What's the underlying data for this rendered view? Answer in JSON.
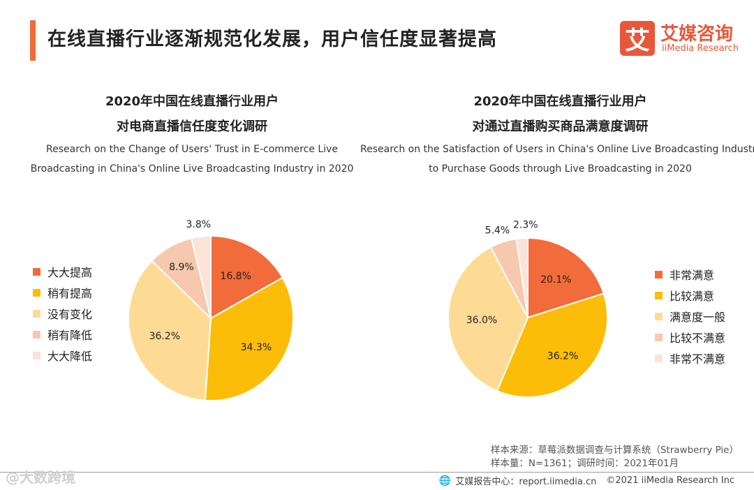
{
  "header": {
    "title": "在线直播行业逐渐规范化发展，用户信任度显著提高",
    "logo_mark": "艾",
    "logo_cn": "艾媒咨询",
    "logo_en": "iiMedia Research"
  },
  "charts": [
    {
      "title_line1": "2020年中国在线直播行业用户",
      "title_line2": "对电商直播信任度变化调研",
      "subtitle_line1": "Research on the Change of Users' Trust in E-commerce Live",
      "subtitle_line2": "Broadcasting in China's Online Live Broadcasting Industry in 2020"
    },
    {
      "title_line1": "2020年中国在线直播行业用户",
      "title_line2": "对通过直播购买商品满意度调研",
      "subtitle_line1": "Research on the Satisfaction of Users in China's Online Live Broadcasting Industry",
      "subtitle_line2": "to Purchase Goods through Live Broadcasting in 2020"
    }
  ],
  "chart_data": [
    {
      "type": "pie",
      "title": "2020年中国在线直播行业用户对电商直播信任度变化调研",
      "categories": [
        "大大提高",
        "稍有提高",
        "没有变化",
        "稍有降低",
        "大大降低"
      ],
      "values": [
        16.8,
        34.3,
        36.2,
        8.9,
        3.8
      ],
      "labels": [
        "16.8%",
        "34.3%",
        "36.2%",
        "8.9%",
        "3.8%"
      ],
      "colors": [
        "#f26b3a",
        "#fbbd08",
        "#fddb94",
        "#f6c8ae",
        "#fbe3d7"
      ],
      "legend_position": "left"
    },
    {
      "type": "pie",
      "title": "2020年中国在线直播行业用户对通过直播购买商品满意度调研",
      "categories": [
        "非常满意",
        "比较满意",
        "满意度一般",
        "比较不满意",
        "非常不满意"
      ],
      "values": [
        20.1,
        36.2,
        36.0,
        5.4,
        2.3
      ],
      "labels": [
        "20.1%",
        "36.2%",
        "36.0%",
        "5.4%",
        "2.3%"
      ],
      "colors": [
        "#f26b3a",
        "#fbbd08",
        "#fddb94",
        "#f6c8ae",
        "#fbe3d7"
      ],
      "legend_position": "right"
    }
  ],
  "source": {
    "line1": "样本来源：草莓派数据调查与计算系统（Strawberry Pie）",
    "line2": "样本量：N=1361；调研时间：2021年01月"
  },
  "footer": {
    "center": "艾媒报告中心：report.iimedia.cn",
    "copyright": "©2021  iiMedia Research  Inc",
    "watermark": "@大数跨境"
  }
}
